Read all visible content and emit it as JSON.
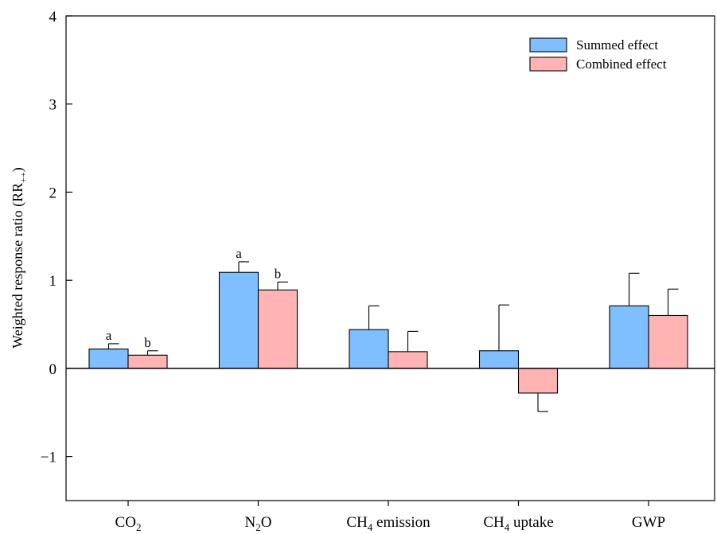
{
  "chart_data": {
    "type": "bar",
    "title": "",
    "xlabel": "",
    "ylabel": {
      "main": "Weighted response ratio (RR",
      "sub": "++",
      "close": ")"
    },
    "ylim": [
      -1.5,
      4
    ],
    "yticks": [
      {
        "value": -1,
        "label": "−1"
      },
      {
        "value": 0,
        "label": "0"
      },
      {
        "value": 1,
        "label": "1"
      },
      {
        "value": 2,
        "label": "2"
      },
      {
        "value": 3,
        "label": "3"
      },
      {
        "value": 4,
        "label": "4"
      }
    ],
    "categories": [
      {
        "main": "CO",
        "sub": "2",
        "rest": ""
      },
      {
        "main": "N",
        "sub": "2",
        "rest": "O"
      },
      {
        "main": "CH",
        "sub": "4",
        "rest": " emission"
      },
      {
        "main": "CH",
        "sub": "4",
        "rest": " uptake"
      },
      {
        "main": "GWP",
        "sub": "",
        "rest": ""
      }
    ],
    "series": [
      {
        "name": "Summed effect",
        "color": "#80bfff",
        "values": [
          0.22,
          1.09,
          0.44,
          0.2,
          0.71
        ],
        "errors": [
          0.06,
          0.12,
          0.27,
          0.52,
          0.37
        ],
        "labels": [
          "a",
          "a",
          "",
          "",
          ""
        ]
      },
      {
        "name": "Combined effect",
        "color": "#ffb3b3",
        "values": [
          0.15,
          0.89,
          0.19,
          -0.28,
          0.6
        ],
        "errors": [
          0.05,
          0.09,
          0.23,
          0.21,
          0.3
        ],
        "labels": [
          "b",
          "b",
          "",
          "",
          ""
        ]
      }
    ],
    "legend": "top-right",
    "grid": false,
    "zero_line": true
  }
}
